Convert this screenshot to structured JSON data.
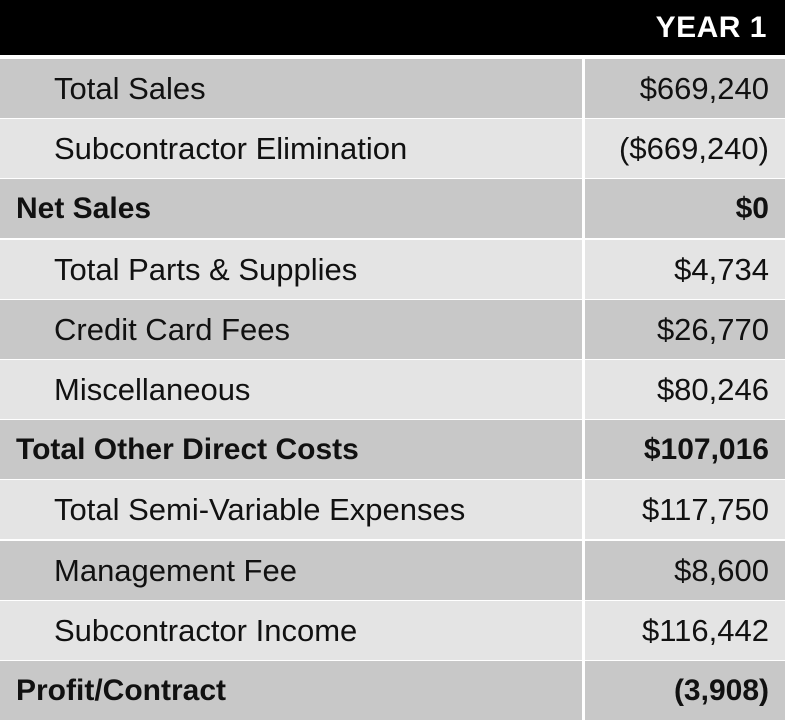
{
  "header": {
    "label": "YEAR 1"
  },
  "rows": [
    {
      "label": "Total Sales",
      "value": "$669,240",
      "bold": false
    },
    {
      "label": "Subcontractor Elimination",
      "value": "($669,240)",
      "bold": false
    },
    {
      "label": "Net Sales",
      "value": "$0",
      "bold": true
    },
    {
      "label": "Total Parts & Supplies",
      "value": "$4,734",
      "bold": false
    },
    {
      "label": "Credit Card Fees",
      "value": "$26,770",
      "bold": false
    },
    {
      "label": "Miscellaneous",
      "value": "$80,246",
      "bold": false
    },
    {
      "label": "Total Other Direct Costs",
      "value": "$107,016",
      "bold": true
    },
    {
      "label": "Total Semi-Variable Expenses",
      "value": "$117,750",
      "bold": false
    },
    {
      "label": "Management Fee",
      "value": "$8,600",
      "bold": false
    },
    {
      "label": "Subcontractor Income",
      "value": "$116,442",
      "bold": false
    },
    {
      "label": "Profit/Contract",
      "value": "(3,908)",
      "bold": true
    }
  ],
  "colors": {
    "header_bg": "#000000",
    "header_text": "#ffffff",
    "row_dark": "#c8c8c8",
    "row_light": "#e4e4e4"
  }
}
